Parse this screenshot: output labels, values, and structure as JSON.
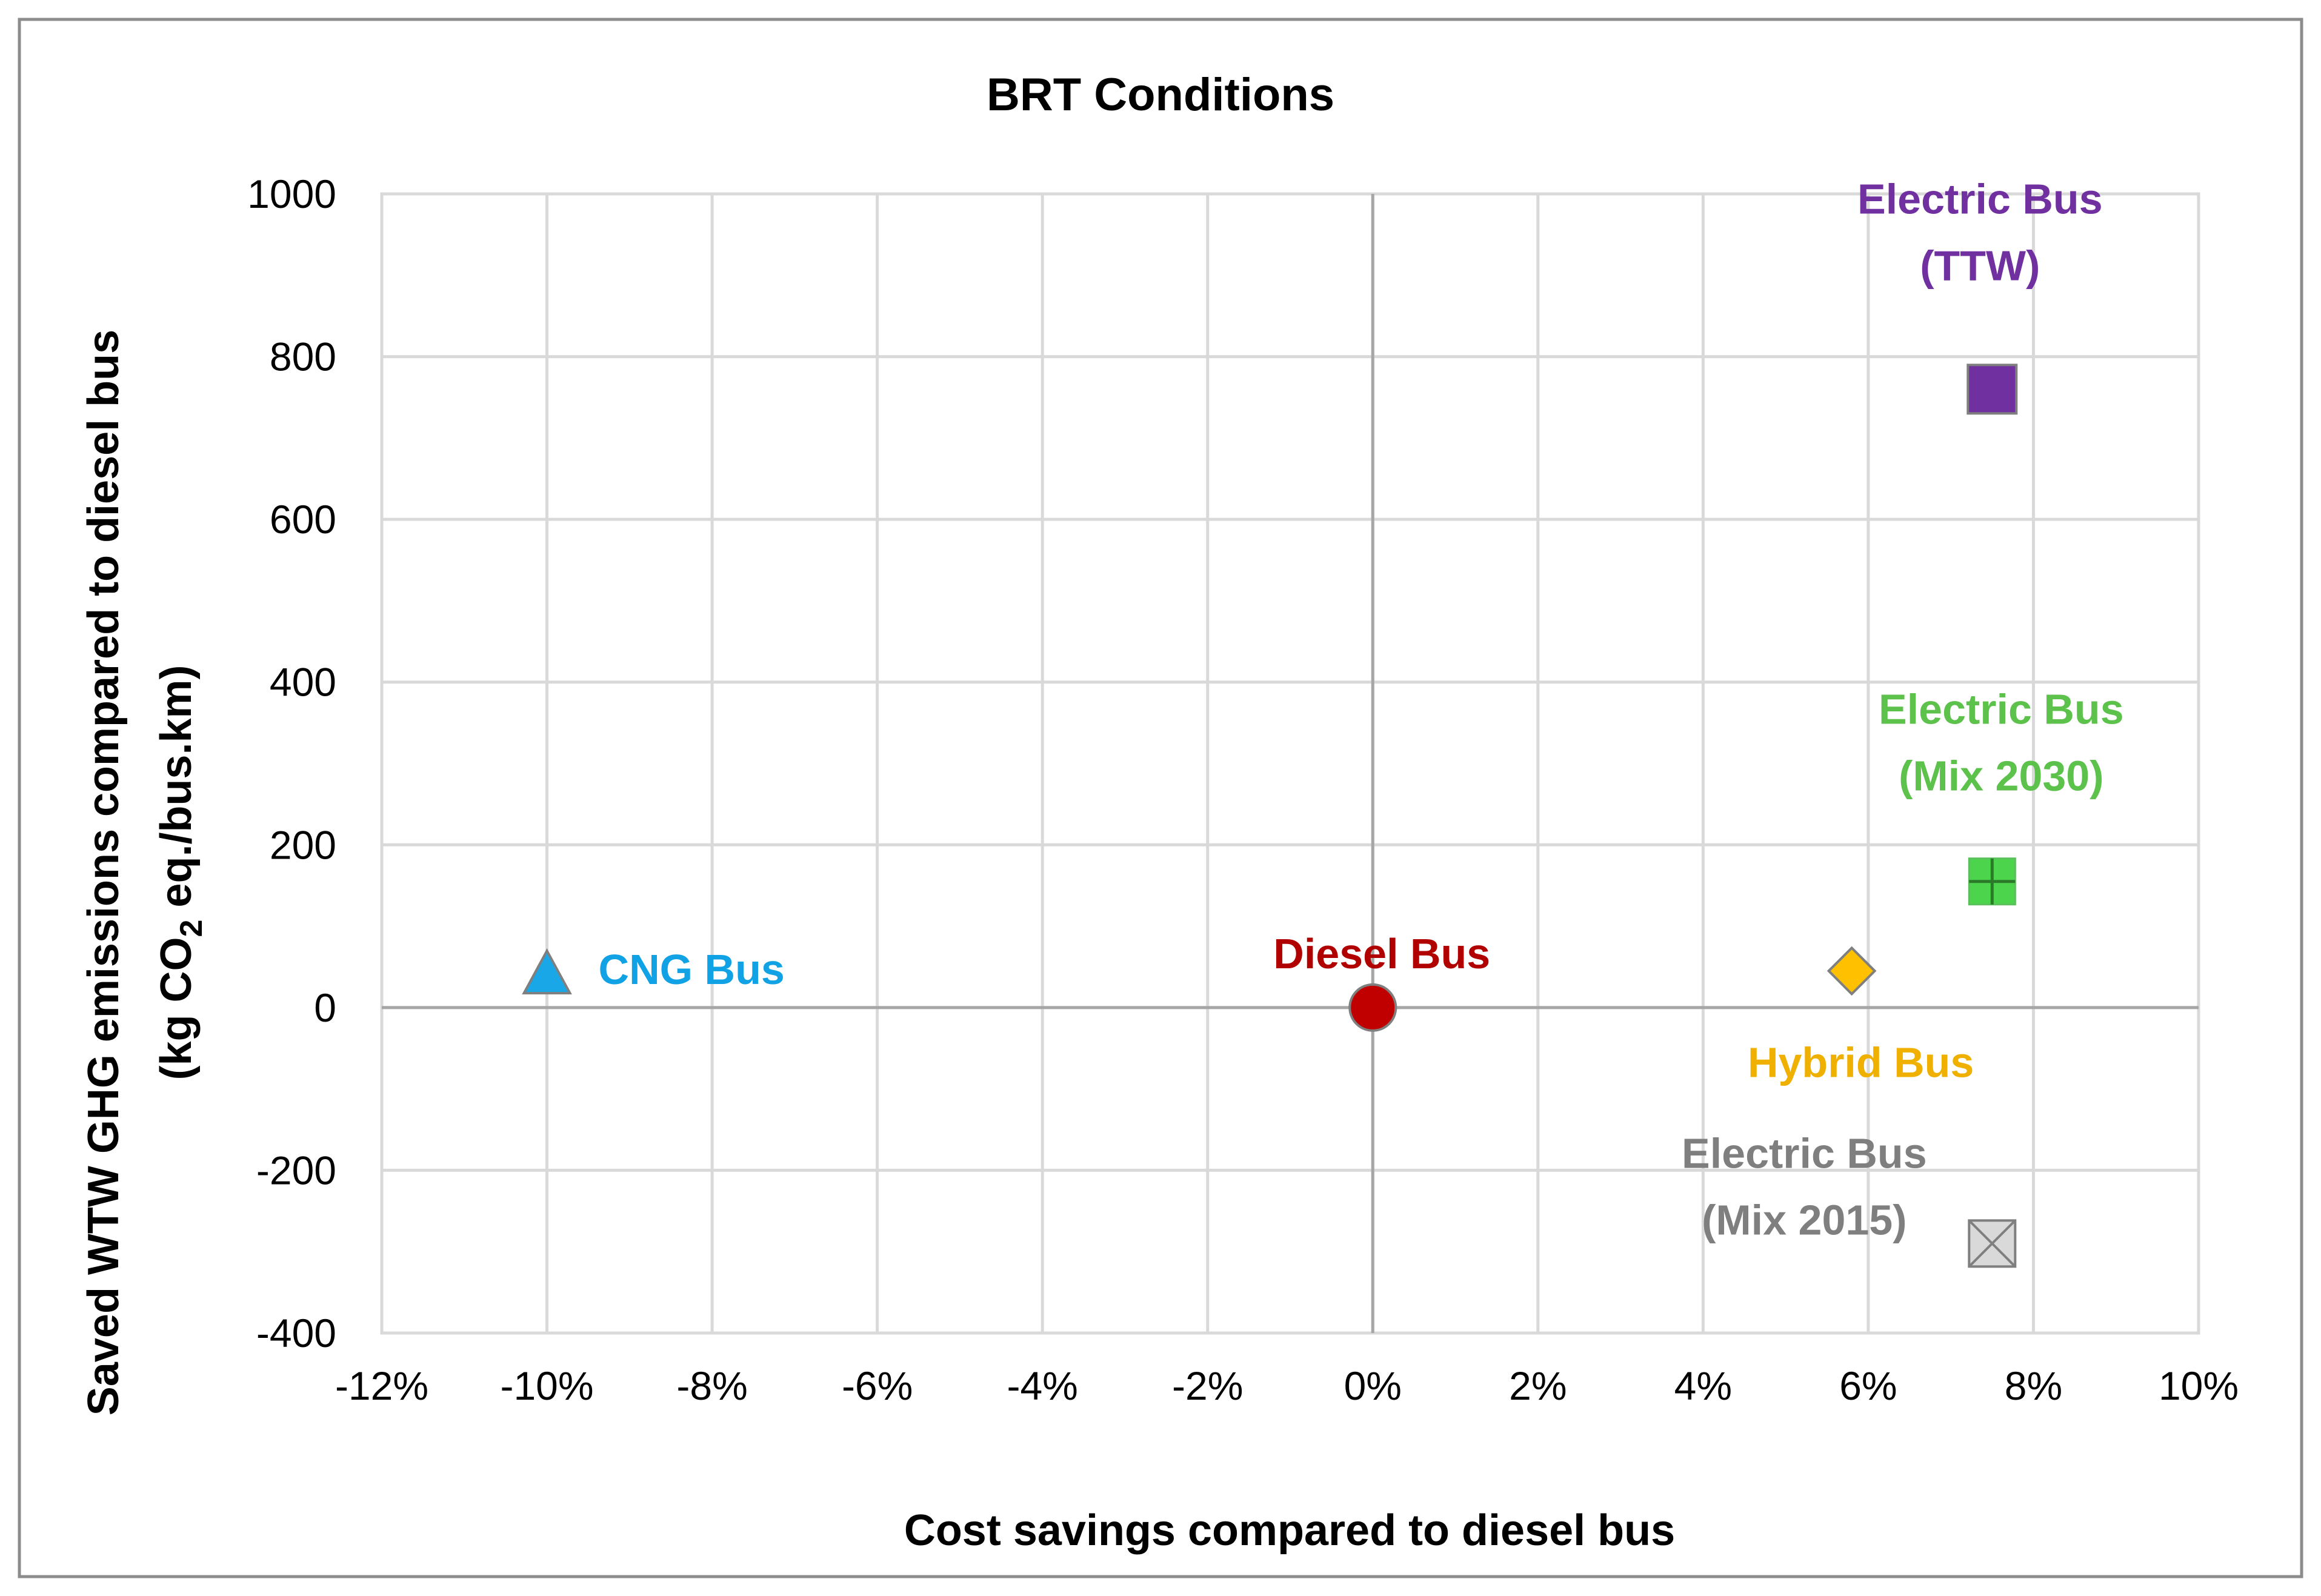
{
  "chart_data": {
    "type": "scatter",
    "title": "BRT Conditions",
    "xlabel": "Cost savings compared to diesel bus",
    "ylabel": {
      "line1": "Saved WTW GHG emissions compared to  diesel bus",
      "line2_prefix": "(kg CO",
      "line2_sub": "2",
      "line2_suffix": " eq./bus.km)"
    },
    "xlim": [
      -0.12,
      0.1
    ],
    "ylim": [
      -400,
      1000
    ],
    "x_ticks": [
      -0.12,
      -0.1,
      -0.08,
      -0.06,
      -0.04,
      -0.02,
      0,
      0.02,
      0.04,
      0.06,
      0.08,
      0.1
    ],
    "x_tick_labels": [
      "-12%",
      "-10%",
      "-8%",
      "-6%",
      "-4%",
      "-2%",
      "0%",
      "2%",
      "4%",
      "6%",
      "8%",
      "10%"
    ],
    "y_ticks": [
      -400,
      -200,
      0,
      200,
      400,
      600,
      800,
      1000
    ],
    "y_tick_labels": [
      "-400",
      "-200",
      "0",
      "200",
      "400",
      "600",
      "800",
      "1000"
    ],
    "grid": true,
    "legend": "none",
    "points": [
      {
        "label_lines": [
          "CNG Bus"
        ],
        "x": -0.1,
        "y": 40,
        "marker": "triangle",
        "color": "#1aa7e8",
        "label_color": "#10a2e4"
      },
      {
        "label_lines": [
          "Diesel Bus"
        ],
        "x": 0.0,
        "y": 0,
        "marker": "circle",
        "color": "#c00000",
        "label_color": "#b00000"
      },
      {
        "label_lines": [
          "Hybrid Bus"
        ],
        "x": 0.058,
        "y": 45,
        "marker": "diamond",
        "color": "#ffc000",
        "label_color": "#f0b000"
      },
      {
        "label_lines": [
          "Electric Bus",
          "(Mix 2030)"
        ],
        "x": 0.075,
        "y": 155,
        "marker": "square-plus",
        "color": "#4cd44c",
        "label_color": "#5cc24c"
      },
      {
        "label_lines": [
          "Electric Bus",
          "(TTW)"
        ],
        "x": 0.075,
        "y": 760,
        "marker": "square",
        "color": "#7030a0",
        "label_color": "#7030a0"
      },
      {
        "label_lines": [
          "Electric Bus",
          "(Mix 2015)"
        ],
        "x": 0.075,
        "y": -290,
        "marker": "square-x",
        "color": "#d9d9d9",
        "label_color": "#7f7f7f"
      }
    ]
  }
}
